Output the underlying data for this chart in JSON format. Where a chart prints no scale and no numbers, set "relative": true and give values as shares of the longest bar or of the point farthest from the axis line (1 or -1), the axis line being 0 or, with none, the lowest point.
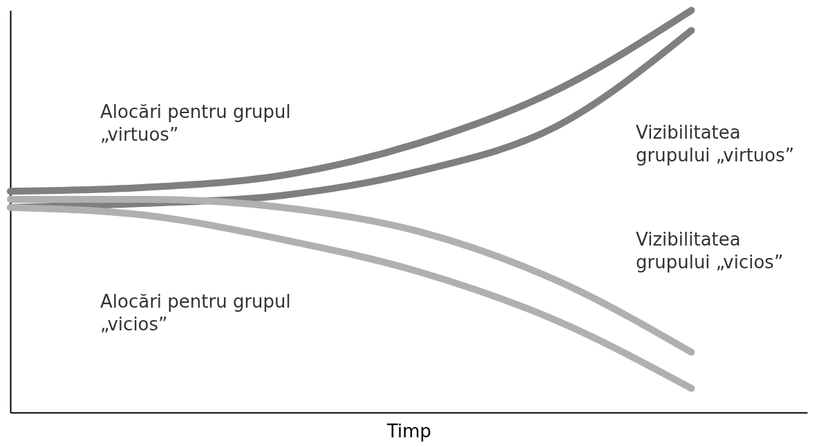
{
  "chart_data": {
    "type": "line",
    "relative": true,
    "xlabel": "Timp",
    "categories": [
      null,
      null,
      null,
      null,
      null,
      null
    ],
    "grid": false,
    "legend": false,
    "line_style": "solid",
    "series": [
      {
        "name": "Alocări pentru grupul „virtuos”",
        "color": "#7f7f7f",
        "values": [
          0.55,
          0.56,
          0.59,
          0.67,
          0.8,
          1.0
        ]
      },
      {
        "name": "Vizibilitatea grupului „virtuos”",
        "color": "#7f7f7f",
        "values": [
          0.51,
          0.52,
          0.54,
          0.6,
          0.71,
          0.95
        ]
      },
      {
        "name": "Vizibilitatea grupului „vicios”",
        "color": "#b0b0b0",
        "values": [
          0.53,
          0.53,
          0.51,
          0.45,
          0.33,
          0.15
        ]
      },
      {
        "name": "Alocări pentru grupul „vicios”",
        "color": "#b0b0b0",
        "values": [
          0.51,
          0.49,
          0.43,
          0.35,
          0.23,
          0.06
        ]
      }
    ]
  }
}
